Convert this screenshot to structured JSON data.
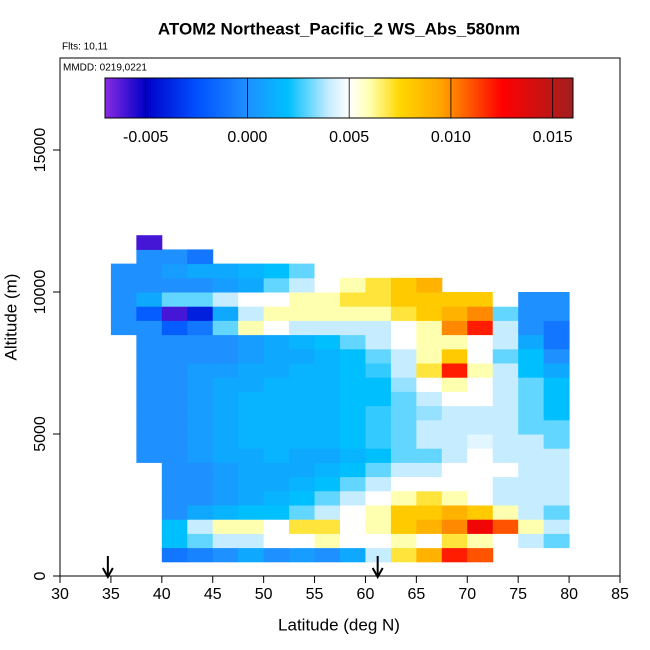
{
  "chart_data": {
    "type": "heatmap",
    "title": "ATOM2 Northeast_Pacific_2 WS_Abs_580nm",
    "subtitle": "Flts: 10,11",
    "annotation": "MMDD: 0219,0221",
    "x_label": "Latitude (deg N)",
    "y_label": "Altitude (m)",
    "xlim": [
      30,
      85
    ],
    "xticks": [
      30,
      35,
      40,
      45,
      50,
      55,
      60,
      65,
      70,
      75,
      80,
      85
    ],
    "ylim": [
      0,
      18240
    ],
    "yticks": [
      0,
      5000,
      10000,
      15000
    ],
    "clim": [
      -0.007,
      0.016
    ],
    "cticks": [
      -0.005,
      {
        "value": 0,
        "label": "0.000"
      },
      0.005,
      {
        "value": 0.01,
        "label": "0.010"
      },
      0.015
    ],
    "colorscale": [
      [
        -0.007,
        "#8a2be2"
      ],
      [
        -0.005,
        "#0000c8"
      ],
      [
        -0.0025,
        "#0050ff"
      ],
      [
        0,
        "#1e90ff"
      ],
      [
        0.002,
        "#00bfff"
      ],
      [
        0.004,
        "#c6ecff"
      ],
      [
        0.005,
        "#ffffff"
      ],
      [
        0.006,
        "#ffffb0"
      ],
      [
        0.0075,
        "#ffd700"
      ],
      [
        0.0095,
        "#ffa500"
      ],
      [
        0.0125,
        "#ff0000"
      ],
      [
        0.016,
        "#a02020"
      ]
    ],
    "arrows": [
      34.7,
      61.2
    ],
    "x_bins": [
      35,
      37.5,
      40,
      42.5,
      45,
      47.5,
      50,
      52.5,
      55,
      57.5,
      60,
      62.5,
      65,
      67.5,
      70,
      72.5,
      75,
      77.5,
      80
    ],
    "y_bins": [
      500,
      1000,
      1500,
      2000,
      2500,
      3000,
      3500,
      4000,
      4500,
      5000,
      5500,
      6000,
      6500,
      7000,
      7500,
      8000,
      8500,
      9000,
      9500,
      10000,
      10500,
      11000,
      11500,
      12000
    ],
    "values": [
      [
        null,
        null,
        -0.001,
        -0.0005,
        0,
        0.001,
        0,
        0.0005,
        0,
        0.001,
        0.004,
        0.007,
        0.009,
        0.012,
        0.011,
        null,
        null,
        null
      ],
      [
        null,
        null,
        0.002,
        0.003,
        0.004,
        0.004,
        0.005,
        0.005,
        0.006,
        0.005,
        0.005,
        0.006,
        0.005,
        0.007,
        0.006,
        0.005,
        0.004,
        0.003
      ],
      [
        null,
        null,
        0.002,
        0.004,
        0.006,
        0.006,
        0.005,
        0.007,
        0.007,
        0.005,
        0.006,
        0.008,
        0.009,
        0.01,
        0.013,
        0.011,
        0.006,
        0.004
      ],
      [
        null,
        null,
        0,
        0.001,
        0.0015,
        0.002,
        0.002,
        0.003,
        0.004,
        0.005,
        0.006,
        0.008,
        0.008,
        0.009,
        0.008,
        0.006,
        0.004,
        0.003
      ],
      [
        null,
        null,
        0,
        0,
        0.0005,
        0.001,
        0.0015,
        0.002,
        0.003,
        0.004,
        0.005,
        0.006,
        0.007,
        0.006,
        0.005,
        0.004,
        0.004,
        0.004
      ],
      [
        null,
        null,
        0,
        0,
        0.0005,
        0.001,
        0.001,
        0.0015,
        0.002,
        0.003,
        0.004,
        0.005,
        0.005,
        0.005,
        0.005,
        0.004,
        0.004,
        0.004
      ],
      [
        null,
        null,
        0,
        0,
        0.0005,
        0.001,
        0.001,
        0.001,
        0.0015,
        0.002,
        0.003,
        0.004,
        0.004,
        0.005,
        0.005,
        0.005,
        0.004,
        0.004
      ],
      [
        null,
        0,
        0,
        0.0005,
        0.001,
        0.001,
        0.0015,
        0.001,
        0.001,
        0.0015,
        0.002,
        0.003,
        0.003,
        0.004,
        0.005,
        0.004,
        0.004,
        0.004
      ],
      [
        null,
        0,
        0,
        0.0005,
        0.001,
        0.0015,
        0.0015,
        0.0015,
        0.0015,
        0.002,
        0.0025,
        0.003,
        0.004,
        0.004,
        0.0045,
        0.004,
        0.004,
        0.003
      ],
      [
        null,
        0,
        0,
        0.0005,
        0.001,
        0.0015,
        0.0015,
        0.0015,
        0.0015,
        0.002,
        0.0025,
        0.003,
        0.004,
        0.004,
        0.004,
        0.004,
        0.003,
        0.003
      ],
      [
        null,
        0,
        0,
        0.0005,
        0.001,
        0.0015,
        0.0015,
        0.0015,
        0.0015,
        0.002,
        0.0025,
        0.003,
        0.0035,
        0.004,
        0.004,
        0.004,
        0.003,
        0.002
      ],
      [
        null,
        0,
        0,
        0.0005,
        0.001,
        0.0015,
        0.0015,
        0.0015,
        0.0015,
        0.002,
        0.002,
        0.003,
        0.004,
        0.005,
        0.005,
        0.004,
        0.003,
        0.002
      ],
      [
        null,
        0,
        0,
        0.0005,
        0.001,
        0.001,
        0.0015,
        0.0015,
        0.0015,
        0.002,
        0.002,
        0.0035,
        0.005,
        0.006,
        0.005,
        0.004,
        0.003,
        0.002
      ],
      [
        null,
        0,
        0,
        0.0005,
        0.0005,
        0.001,
        0.001,
        0.0015,
        0.0015,
        0.002,
        0.0025,
        0.004,
        0.007,
        0.012,
        0.006,
        0.004,
        0.002,
        0.001
      ],
      [
        null,
        0,
        0,
        0,
        0,
        0.0005,
        0.001,
        0.001,
        0.0015,
        0.002,
        0.003,
        0.004,
        0.006,
        0.008,
        0.005,
        0.003,
        0.002,
        0
      ],
      [
        null,
        0,
        0,
        0,
        0,
        0.0005,
        0.001,
        0.0015,
        0.002,
        0.003,
        0.004,
        0.005,
        0.006,
        0.006,
        0.005,
        0.004,
        0.001,
        -0.001
      ],
      [
        0,
        0,
        -0.002,
        -0.001,
        0.003,
        0.006,
        0.005,
        0.004,
        0.004,
        0.004,
        0.004,
        0.005,
        0.006,
        0.01,
        0.012,
        0.004,
        0,
        -0.001
      ],
      [
        0,
        -0.002,
        -0.006,
        -0.004,
        0.001,
        0.004,
        0.006,
        0.006,
        0.006,
        0.006,
        0.006,
        0.007,
        0.008,
        0.009,
        0.01,
        0.003,
        0,
        0
      ],
      [
        0,
        0.001,
        0.003,
        0.003,
        0.004,
        0.005,
        0.005,
        0.006,
        0.006,
        0.007,
        0.007,
        0.008,
        0.008,
        0.008,
        0.008,
        0.005,
        0,
        0
      ],
      [
        0,
        0,
        0,
        0,
        0.0005,
        0.001,
        0.003,
        0.004,
        0.005,
        0.006,
        0.007,
        0.008,
        0.009,
        null,
        null,
        null,
        null,
        null
      ],
      [
        0,
        0,
        0.0005,
        0.001,
        0.001,
        0.0015,
        0.002,
        0.003,
        0.005,
        null,
        null,
        null,
        null,
        null,
        null,
        null,
        null,
        null
      ],
      [
        null,
        0,
        0,
        -0.001,
        null,
        null,
        null,
        null,
        null,
        null,
        null,
        null,
        null,
        null,
        null,
        null,
        null,
        null
      ],
      [
        null,
        -0.006,
        null,
        null,
        null,
        null,
        null,
        null,
        null,
        null,
        null,
        null,
        null,
        null,
        null,
        null,
        null,
        null
      ]
    ]
  }
}
